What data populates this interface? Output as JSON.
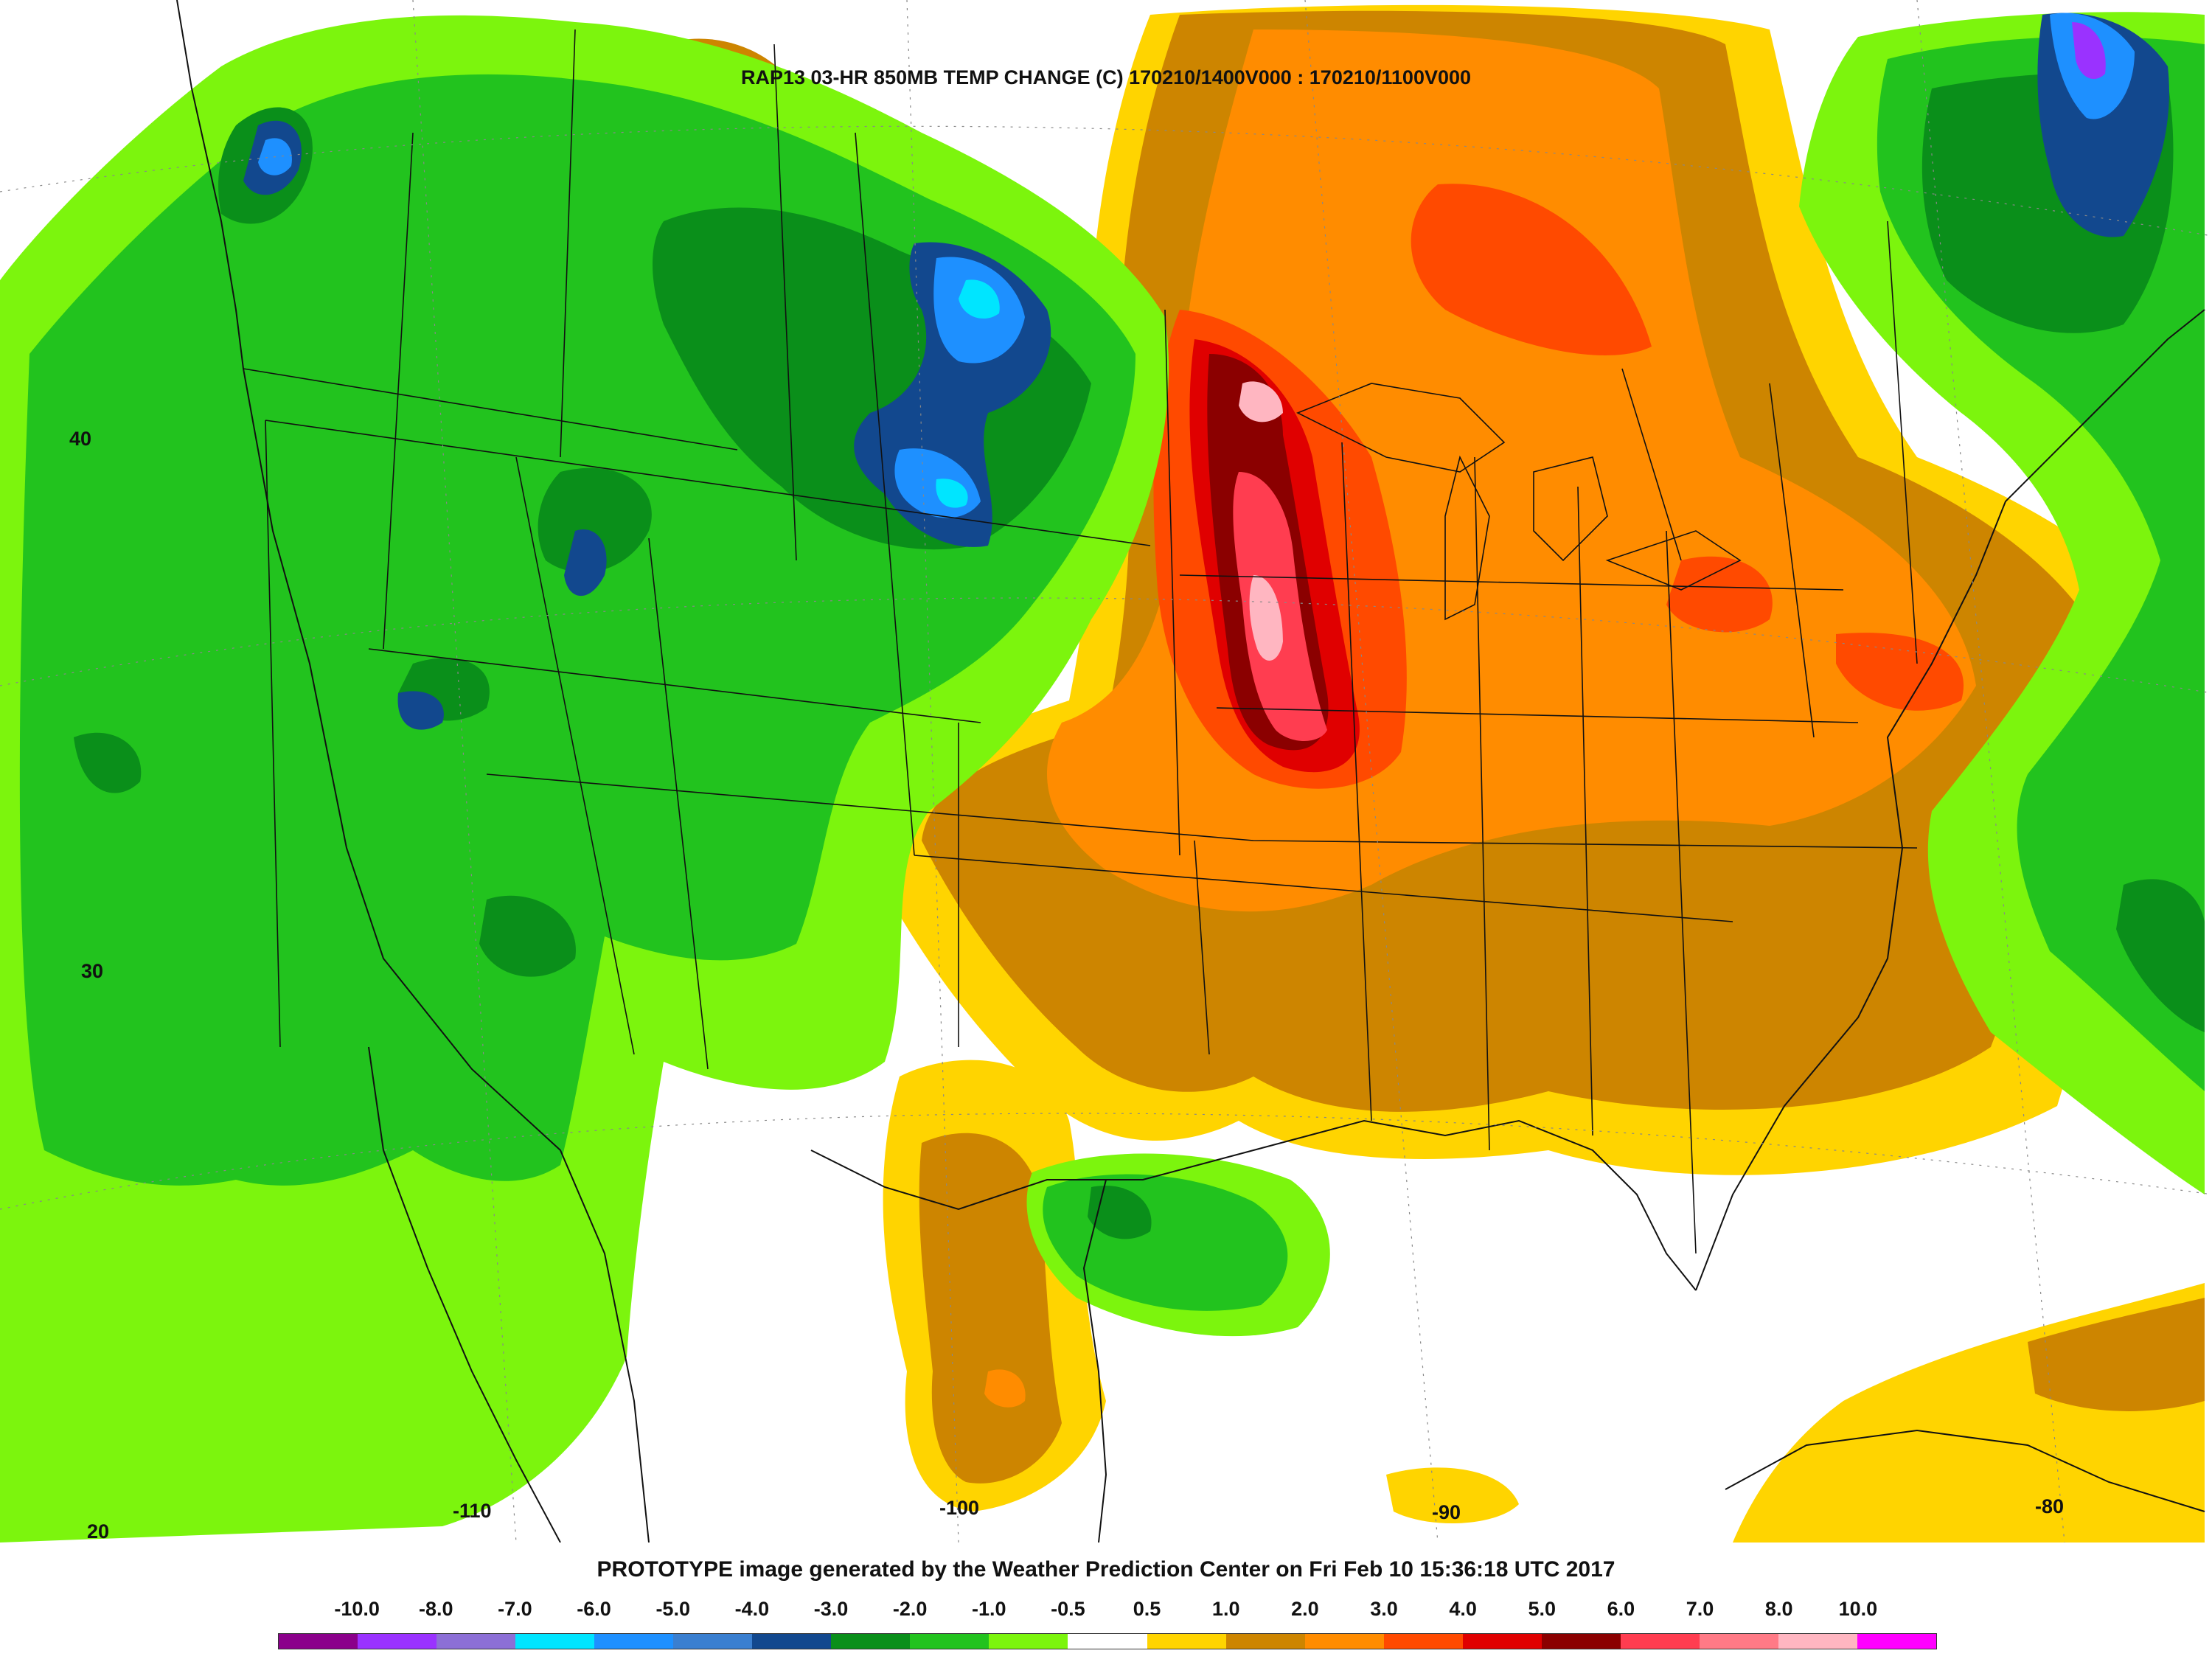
{
  "title": "RAP13 03-HR 850MB TEMP CHANGE (C) 170210/1400V000 : 170210/1100V000",
  "credit": "PROTOTYPE image generated by the Weather Prediction Center on Fri Feb 10 15:36:18 UTC 2017",
  "lat_labels": [
    "40",
    "30",
    "20"
  ],
  "lon_labels": [
    "-110",
    "-100",
    "-90",
    "-80"
  ],
  "legend": {
    "labels": [
      "-10.0",
      "-8.0",
      "-7.0",
      "-6.0",
      "-5.0",
      "-4.0",
      "-3.0",
      "-2.0",
      "-1.0",
      "-0.5",
      "0.5",
      "1.0",
      "2.0",
      "3.0",
      "4.0",
      "5.0",
      "6.0",
      "7.0",
      "8.0",
      "10.0"
    ],
    "colors": [
      "#8b008b",
      "#9a32ff",
      "#8c6fd6",
      "#00e5ff",
      "#1e90ff",
      "#3a7fd0",
      "#12488e",
      "#0a8f1a",
      "#22c31e",
      "#7cf50d",
      "#ffffff",
      "#ffd400",
      "#cd8500",
      "#ff8c00",
      "#ff4a00",
      "#e00000",
      "#8b0000",
      "#ff3d50",
      "#ff7a86",
      "#ffb6c1",
      "#ff00ff"
    ]
  },
  "field_colors": {
    "cool_1": "#7cf50d",
    "cool_2": "#22c31e",
    "cool_3": "#0a8f1a",
    "cool_4": "#12488e",
    "cool_5": "#1e90ff",
    "cool_6": "#00e5ff",
    "warm_1": "#ffd400",
    "warm_2": "#cd8500",
    "warm_3": "#ff8c00",
    "warm_4": "#ff4a00",
    "warm_5": "#e00000",
    "warm_6": "#8b0000",
    "warm_7": "#ff3d50",
    "warm_8": "#ffb6c1",
    "purple": "#9a32ff"
  }
}
